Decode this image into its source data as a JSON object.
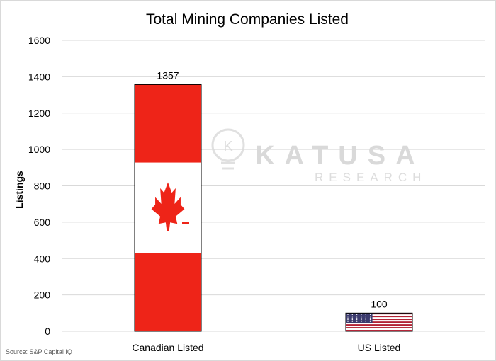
{
  "chart_data": {
    "type": "bar",
    "title": "Total Mining Companies Listed",
    "ylabel": "Listings",
    "xlabel": "",
    "categories": [
      "Canadian Listed",
      "US Listed"
    ],
    "values": [
      1357,
      100
    ],
    "data_labels": [
      "1357",
      "100"
    ],
    "ylim": [
      0,
      1600
    ],
    "yticks": [
      0,
      200,
      400,
      600,
      800,
      1000,
      1200,
      1400,
      1600
    ],
    "grid": true,
    "bar_fills": [
      "canada-flag",
      "us-flag"
    ]
  },
  "watermark": {
    "main": "KATUSA",
    "sub": "RESEARCH"
  },
  "source": "Source: S&P Capital IQ",
  "colors": {
    "canada_red": "#ee2418",
    "us_red": "#b22234",
    "us_blue": "#3c3b6e",
    "grid": "#d9d9d9"
  }
}
